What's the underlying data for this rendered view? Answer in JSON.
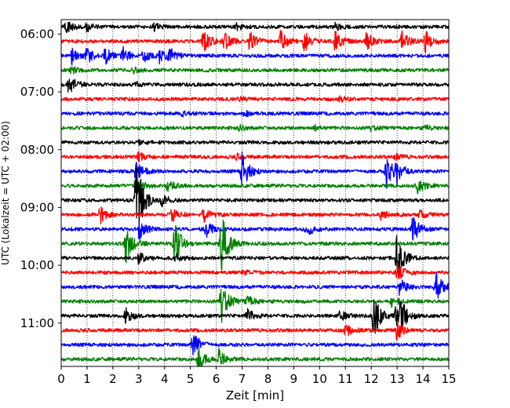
{
  "chart_data": {
    "type": "seismogram-helicorder",
    "title": "",
    "xlabel": "Zeit  [min]",
    "ylabel": "UTC (Lokalzeit = UTC + 02:00)",
    "xlim": [
      0,
      15
    ],
    "x_ticks": [
      "0",
      "1",
      "2",
      "3",
      "4",
      "5",
      "6",
      "7",
      "8",
      "9",
      "10",
      "11",
      "12",
      "13",
      "14",
      "15"
    ],
    "y_tick_labels": [
      "06:00",
      "07:00",
      "08:00",
      "09:00",
      "10:00",
      "11:00"
    ],
    "trace_interval_min": 15,
    "start_time": "05:45",
    "end_time": "11:45",
    "trace_colors": [
      "#000000",
      "#ff0000",
      "#0000ff",
      "#008000"
    ],
    "grid": {
      "vertical_dotted": true
    },
    "traces": [
      {
        "start": "05:45",
        "color": "#000000",
        "events": [
          [
            0.2,
            10
          ],
          [
            1.0,
            5
          ],
          [
            3.6,
            4
          ],
          [
            6.8,
            4
          ],
          [
            10.6,
            5
          ]
        ]
      },
      {
        "start": "06:00",
        "color": "#ff0000",
        "events": [
          [
            5.5,
            14
          ],
          [
            6.3,
            12
          ],
          [
            7.3,
            12
          ],
          [
            8.5,
            13
          ],
          [
            9.4,
            13
          ],
          [
            10.6,
            14
          ],
          [
            11.8,
            12
          ],
          [
            13.2,
            13
          ],
          [
            14.1,
            13
          ]
        ]
      },
      {
        "start": "06:15",
        "color": "#0000ff",
        "events": [
          [
            0.4,
            12
          ],
          [
            1.0,
            9
          ],
          [
            1.7,
            10
          ],
          [
            2.4,
            10
          ],
          [
            3.2,
            9
          ],
          [
            3.8,
            8
          ],
          [
            4.2,
            9
          ]
        ]
      },
      {
        "start": "06:30",
        "color": "#008000",
        "events": [
          [
            0.4,
            4
          ],
          [
            2.8,
            3
          ]
        ]
      },
      {
        "start": "06:45",
        "color": "#000000",
        "events": [
          [
            0.3,
            14
          ],
          [
            2.9,
            3
          ]
        ]
      },
      {
        "start": "07:00",
        "color": "#ff0000",
        "events": [
          [
            6.9,
            3
          ],
          [
            10.8,
            3
          ]
        ]
      },
      {
        "start": "07:15",
        "color": "#0000ff",
        "events": [
          [
            4.7,
            3
          ],
          [
            7.1,
            3
          ]
        ]
      },
      {
        "start": "07:30",
        "color": "#008000",
        "events": [
          [
            6.9,
            3
          ],
          [
            9.8,
            3
          ],
          [
            12.0,
            3
          ],
          [
            14.1,
            3
          ]
        ]
      },
      {
        "start": "07:45",
        "color": "#000000",
        "events": [
          [
            3.0,
            4
          ]
        ]
      },
      {
        "start": "08:00",
        "color": "#ff0000",
        "events": [
          [
            3.0,
            5
          ],
          [
            6.8,
            3
          ],
          [
            12.9,
            4
          ]
        ]
      },
      {
        "start": "08:15",
        "color": "#0000ff",
        "events": [
          [
            2.9,
            14
          ],
          [
            7.0,
            24
          ],
          [
            12.6,
            20
          ],
          [
            13.0,
            14
          ]
        ]
      },
      {
        "start": "08:30",
        "color": "#008000",
        "events": [
          [
            2.9,
            12
          ],
          [
            4.1,
            7
          ],
          [
            13.8,
            9
          ]
        ]
      },
      {
        "start": "08:45",
        "color": "#000000",
        "events": [
          [
            2.9,
            60
          ],
          [
            3.9,
            8
          ]
        ]
      },
      {
        "start": "09:00",
        "color": "#ff0000",
        "events": [
          [
            1.5,
            12
          ],
          [
            4.3,
            9
          ],
          [
            5.5,
            9
          ],
          [
            12.4,
            7
          ],
          [
            13.9,
            5
          ]
        ]
      },
      {
        "start": "09:15",
        "color": "#0000ff",
        "events": [
          [
            3.0,
            14
          ],
          [
            5.6,
            10
          ],
          [
            9.5,
            9
          ],
          [
            13.6,
            18
          ]
        ]
      },
      {
        "start": "09:30",
        "color": "#008000",
        "events": [
          [
            2.5,
            24
          ],
          [
            4.4,
            28
          ],
          [
            6.2,
            40
          ]
        ]
      },
      {
        "start": "09:45",
        "color": "#000000",
        "events": [
          [
            3.0,
            8
          ],
          [
            4.4,
            6
          ],
          [
            13.0,
            34
          ]
        ]
      },
      {
        "start": "10:00",
        "color": "#ff0000",
        "events": [
          [
            7.0,
            3
          ],
          [
            13.0,
            12
          ]
        ]
      },
      {
        "start": "10:15",
        "color": "#0000ff",
        "events": [
          [
            13.1,
            10
          ],
          [
            14.5,
            20
          ]
        ]
      },
      {
        "start": "10:30",
        "color": "#008000",
        "events": [
          [
            6.2,
            28
          ],
          [
            7.2,
            8
          ],
          [
            12.8,
            6
          ]
        ]
      },
      {
        "start": "10:45",
        "color": "#000000",
        "events": [
          [
            2.5,
            9
          ],
          [
            7.2,
            9
          ],
          [
            10.8,
            6
          ],
          [
            12.1,
            26
          ],
          [
            13.0,
            44
          ]
        ]
      },
      {
        "start": "11:00",
        "color": "#ff0000",
        "events": [
          [
            11.0,
            8
          ],
          [
            13.0,
            12
          ]
        ]
      },
      {
        "start": "11:15",
        "color": "#0000ff",
        "events": [
          [
            5.1,
            18
          ]
        ]
      },
      {
        "start": "11:30",
        "color": "#008000",
        "events": [
          [
            5.3,
            18
          ],
          [
            6.1,
            12
          ]
        ]
      }
    ]
  }
}
